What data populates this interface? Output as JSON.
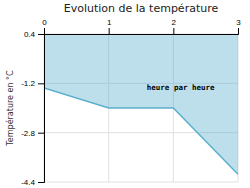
{
  "chart_data": {
    "type": "area",
    "title": "Evolution de la température",
    "ylabel": "Température en °C",
    "annotation": "heure par heure",
    "x": [
      0,
      1.0,
      2.0,
      3.0
    ],
    "values": [
      -1.35,
      -2.0,
      -2.0,
      -4.15
    ],
    "color": "#5ab0cc",
    "xlim": [
      0,
      3
    ],
    "ylim": [
      -4.4,
      0.4
    ],
    "xticks": [
      0,
      1,
      2,
      3
    ],
    "yticks": [
      0.4,
      -1.2,
      -2.8,
      -4.4
    ],
    "grid": true
  }
}
